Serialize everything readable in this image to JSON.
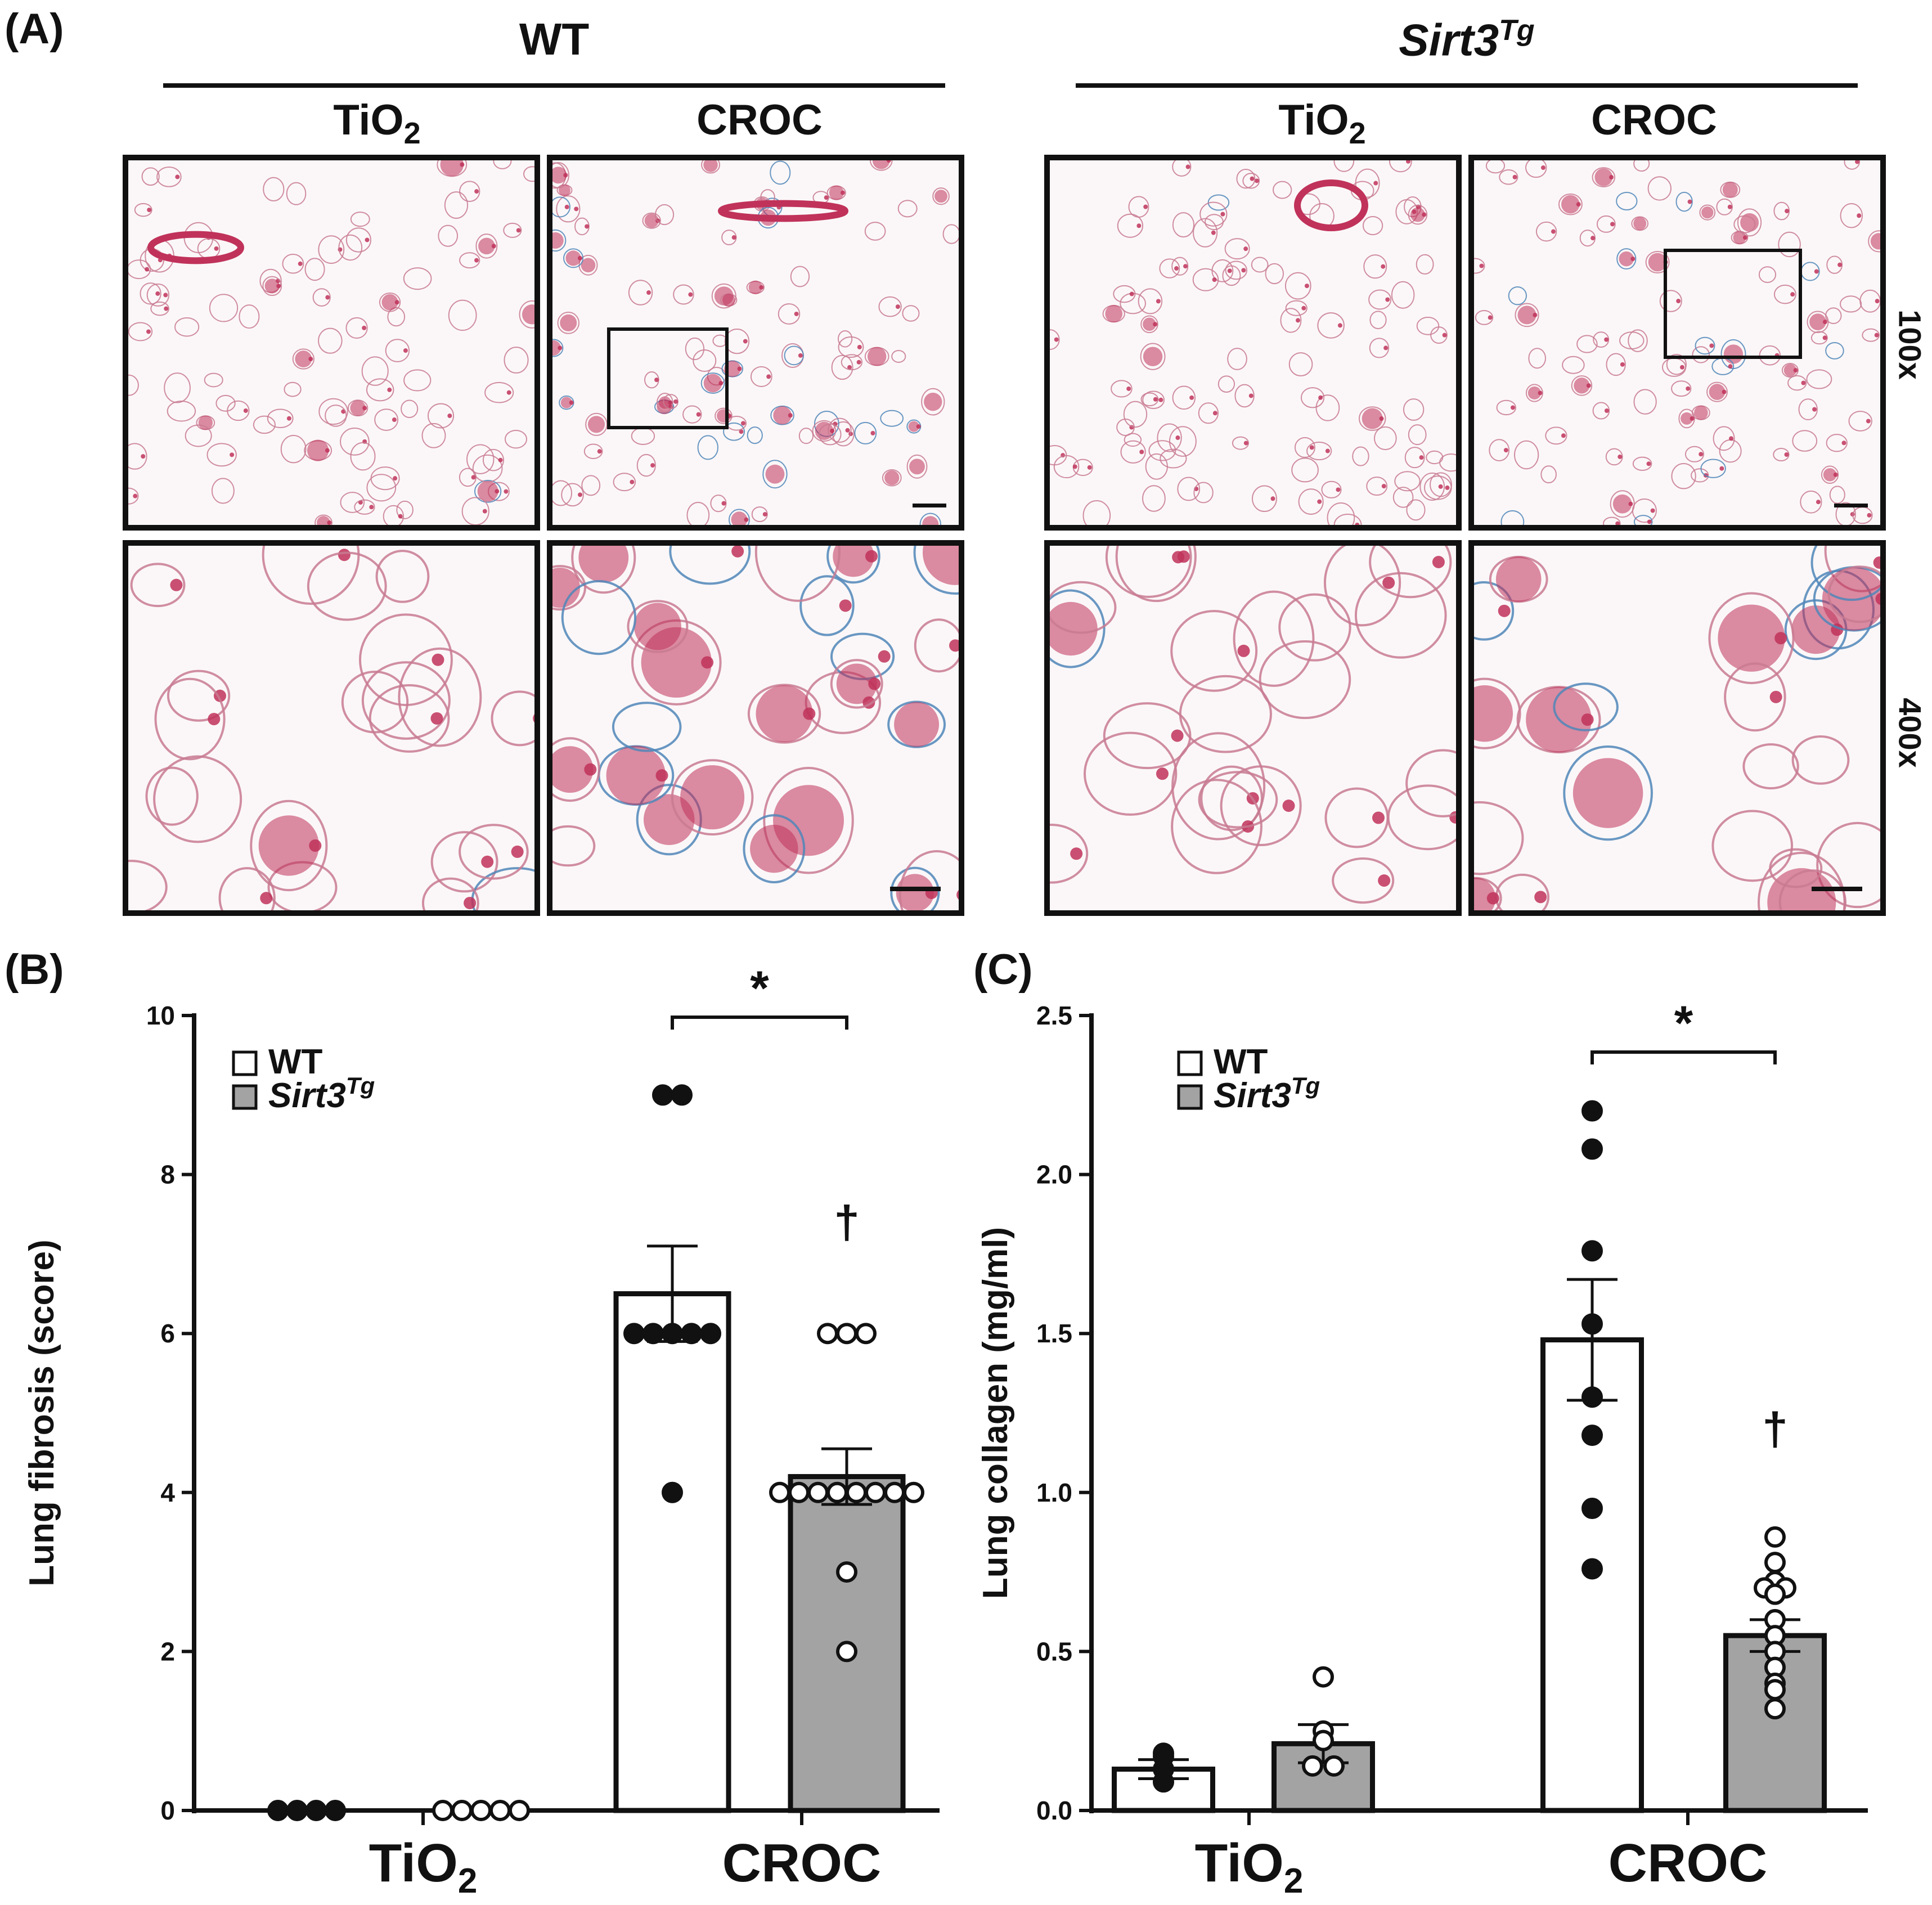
{
  "figure": {
    "panel_a_label": "(A)",
    "panel_b_label": "(B)",
    "panel_c_label": "(C)",
    "groups": [
      {
        "title": "WT",
        "italic": false,
        "superscript": ""
      },
      {
        "title": "Sirt3",
        "italic": true,
        "superscript": "Tg"
      }
    ],
    "columns": [
      {
        "label": "TiO",
        "subscript": "2"
      },
      {
        "label": "CROC",
        "subscript": ""
      },
      {
        "label": "TiO",
        "subscript": "2"
      },
      {
        "label": "CROC",
        "subscript": ""
      }
    ],
    "magnifications": [
      "100x",
      "400x"
    ],
    "colors": {
      "tissue_red": "#c0325a",
      "collagen_blue": "#4f86b8",
      "background": "#fbf7f8",
      "sirt3_bar": "#a3a3a3",
      "wt_bar": "#ffffff",
      "point_fill_wt": "#111111",
      "point_fill_sirt3": "#ffffff"
    }
  },
  "chart_data": [
    {
      "type": "bar",
      "panel": "(B)",
      "ylabel": "Lung fibrosis (score)",
      "ylim": [
        0,
        10
      ],
      "yticks": [
        "0",
        "2",
        "4",
        "6",
        "8",
        "10"
      ],
      "categories": [
        {
          "label": "TiO",
          "subscript": "2"
        },
        {
          "label": "CROC",
          "subscript": ""
        }
      ],
      "legend": [
        {
          "name": "WT",
          "italic": false,
          "superscript": ""
        },
        {
          "name": "Sirt3",
          "italic": true,
          "superscript": "Tg"
        }
      ],
      "legend_position": "top-left",
      "series": [
        {
          "name": "WT",
          "values": [
            0,
            6.5
          ],
          "sem": [
            0,
            0.6
          ],
          "points": [
            [
              0,
              0,
              0,
              0
            ],
            [
              9,
              9,
              6,
              6,
              6,
              6,
              6,
              4
            ]
          ]
        },
        {
          "name": "Sirt3Tg",
          "values": [
            0,
            4.2
          ],
          "sem": [
            0,
            0.35
          ],
          "points": [
            [
              0,
              0,
              0,
              0,
              0
            ],
            [
              6,
              6,
              6,
              4,
              4,
              4,
              4,
              4,
              4,
              4,
              4,
              3,
              2
            ]
          ]
        }
      ],
      "annotations": [
        {
          "text": "*",
          "type": "bracket",
          "category": 1
        },
        {
          "text": "†",
          "type": "marker",
          "category": 1,
          "series": 1,
          "y": 7.2
        }
      ]
    },
    {
      "type": "bar",
      "panel": "(C)",
      "ylabel": "Lung collagen (mg/ml)",
      "ylim": [
        0,
        2.5
      ],
      "yticks": [
        "0.0",
        "0.5",
        "1.0",
        "1.5",
        "2.0",
        "2.5"
      ],
      "categories": [
        {
          "label": "TiO",
          "subscript": "2"
        },
        {
          "label": "CROC",
          "subscript": ""
        }
      ],
      "legend": [
        {
          "name": "WT",
          "italic": false,
          "superscript": ""
        },
        {
          "name": "Sirt3",
          "italic": true,
          "superscript": "Tg"
        }
      ],
      "legend_position": "top-left",
      "series": [
        {
          "name": "WT",
          "values": [
            0.13,
            1.48
          ],
          "sem": [
            0.03,
            0.19
          ],
          "points": [
            [
              0.18,
              0.17,
              0.13,
              0.09
            ],
            [
              2.2,
              2.08,
              1.76,
              1.53,
              1.3,
              1.18,
              0.95,
              0.76
            ]
          ]
        },
        {
          "name": "Sirt3Tg",
          "values": [
            0.21,
            0.55
          ],
          "sem": [
            0.06,
            0.05
          ],
          "points": [
            [
              0.42,
              0.25,
              0.22,
              0.14,
              0.14
            ],
            [
              0.86,
              0.78,
              0.72,
              0.7,
              0.7,
              0.68,
              0.6,
              0.55,
              0.5,
              0.45,
              0.4,
              0.38,
              0.32
            ]
          ]
        }
      ],
      "annotations": [
        {
          "text": "*",
          "type": "bracket",
          "category": 1
        },
        {
          "text": "†",
          "type": "marker",
          "category": 1,
          "series": 1,
          "y": 1.15
        }
      ]
    }
  ]
}
